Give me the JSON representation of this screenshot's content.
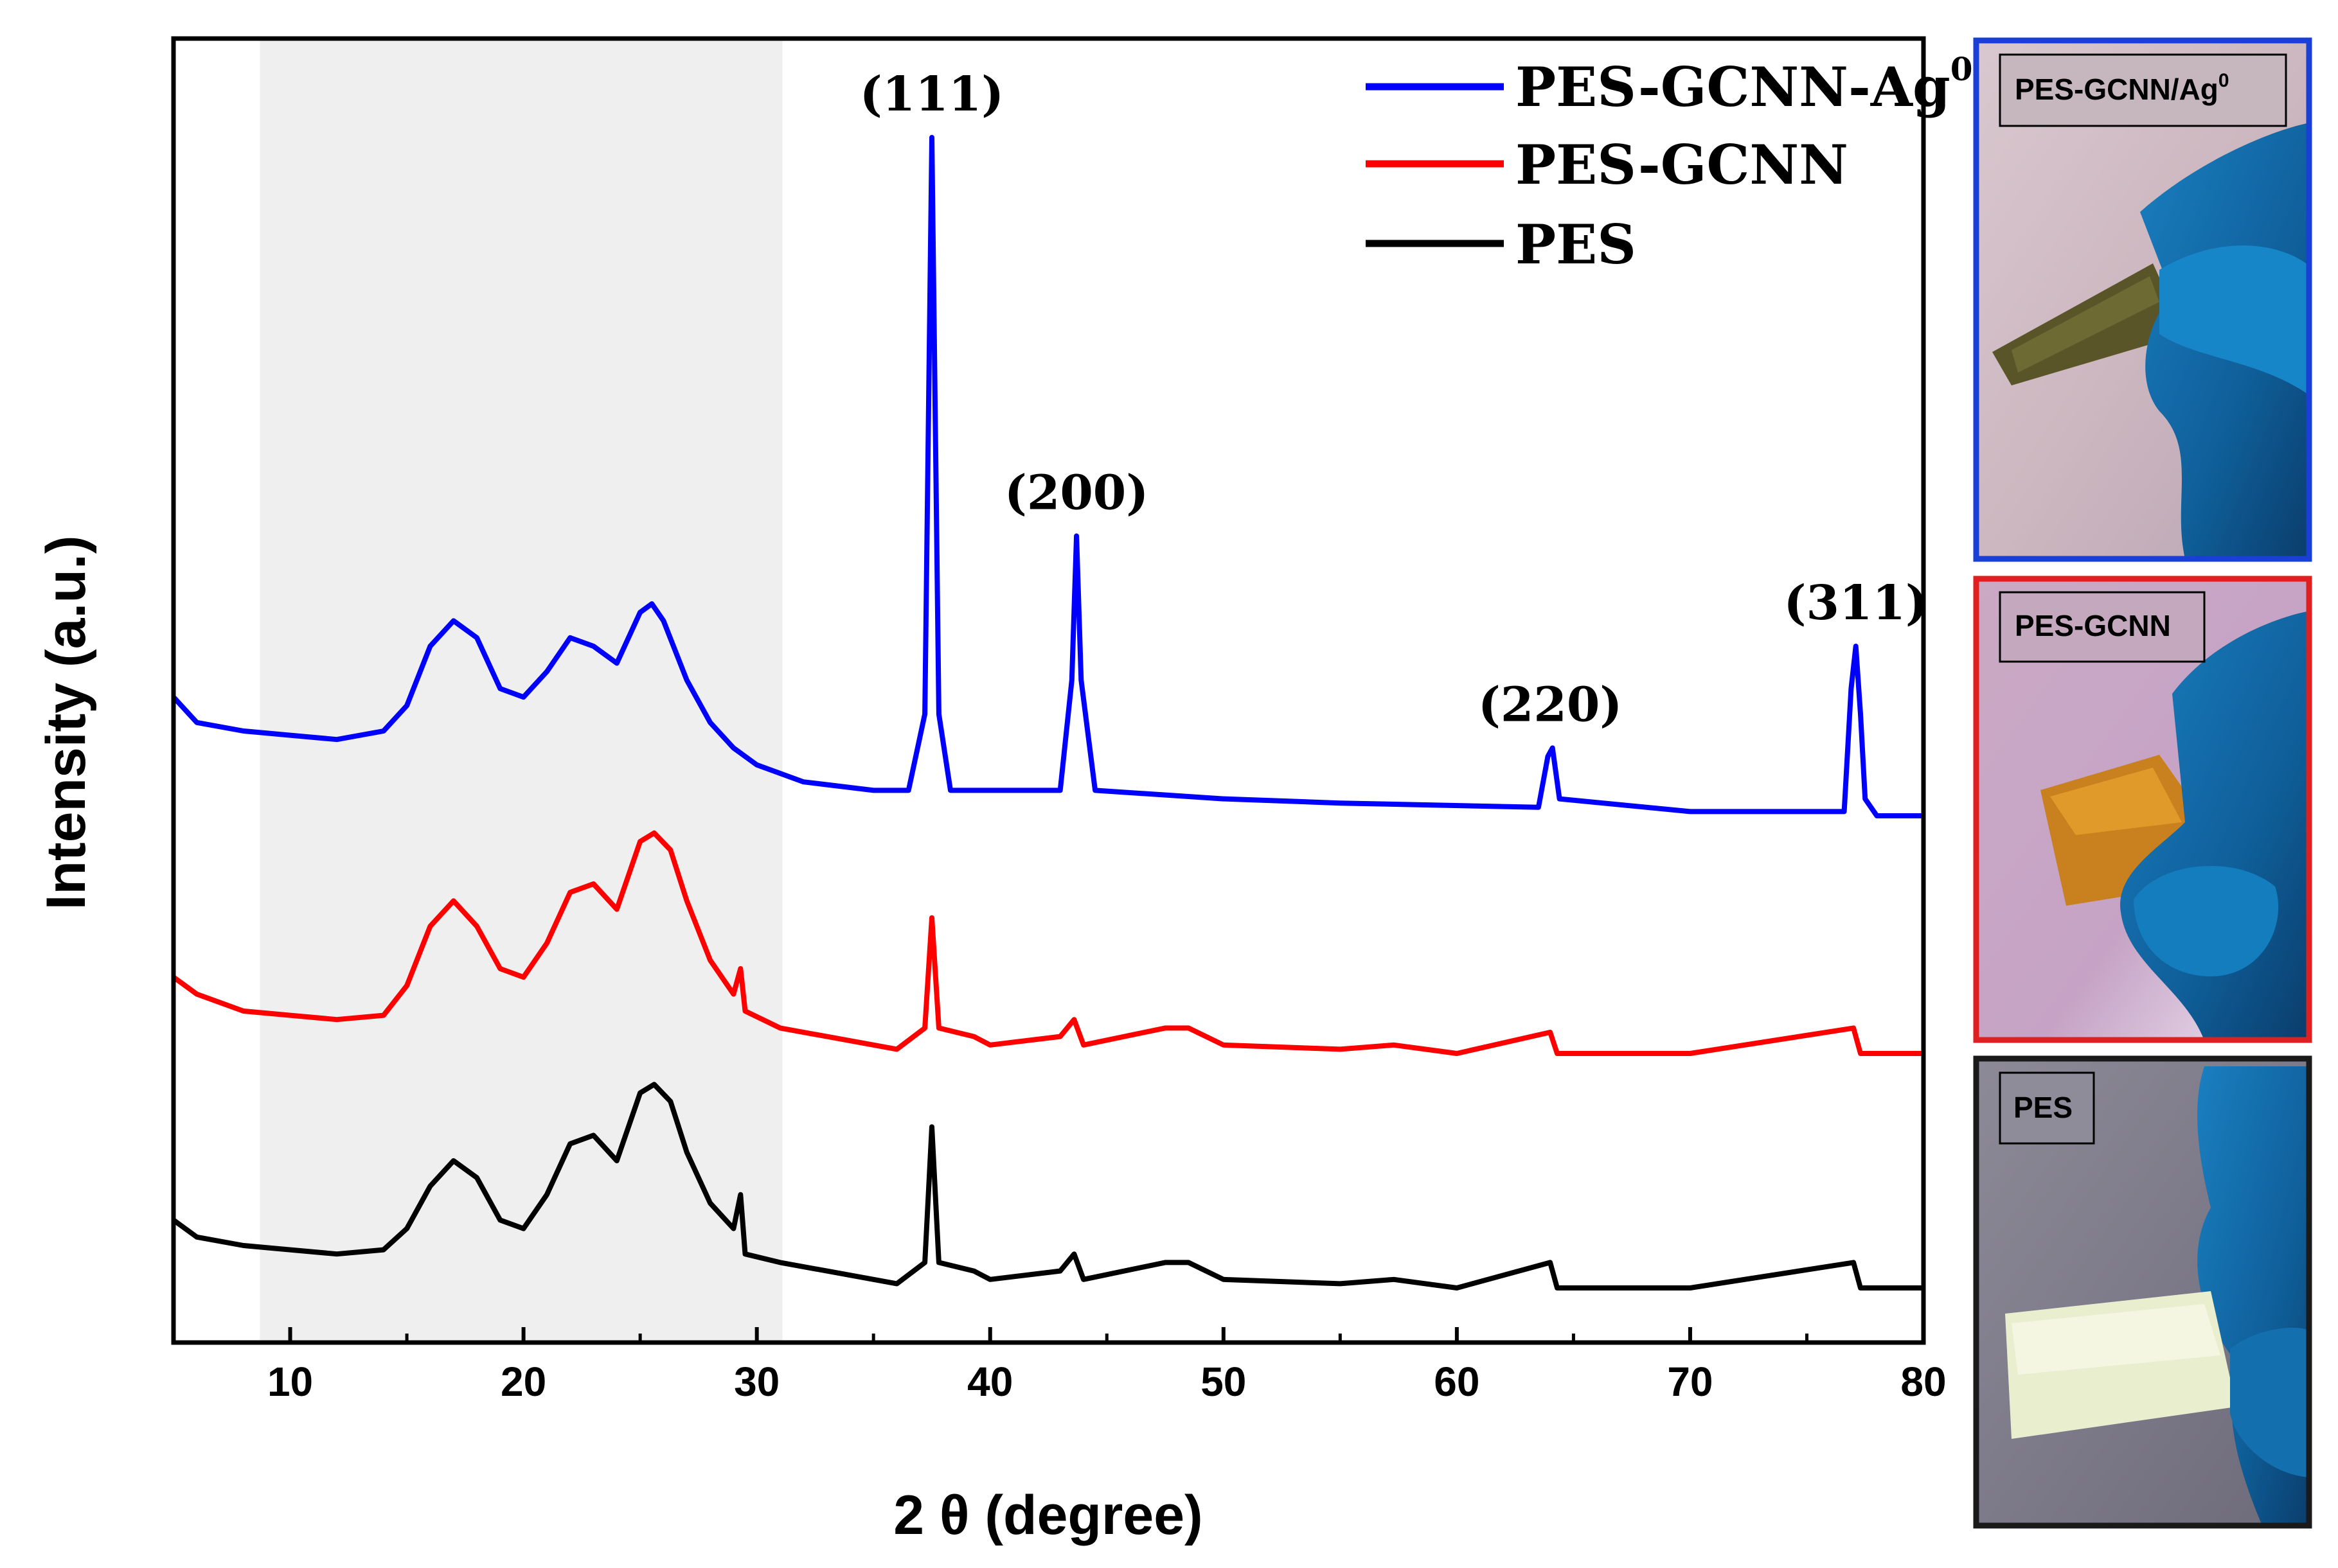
{
  "chart_data": {
    "type": "line",
    "title": "",
    "xlabel": "2 θ (degree)",
    "ylabel": "Intensity (a.u.)",
    "xlim": [
      5,
      80
    ],
    "xticks": [
      10,
      20,
      30,
      40,
      50,
      60,
      70,
      80
    ],
    "yticks": [],
    "grid": false,
    "legend_position": "top-right",
    "shaded_region": [
      8.7,
      31.1
    ],
    "series": [
      {
        "name": "PES-GCNN-Ag",
        "name_superscript": "0",
        "color": "#0000ff",
        "points": [
          [
            5,
            14
          ],
          [
            6,
            11
          ],
          [
            8,
            10
          ],
          [
            10,
            9.5
          ],
          [
            12,
            9
          ],
          [
            14,
            10
          ],
          [
            15,
            13
          ],
          [
            16,
            20
          ],
          [
            17,
            23
          ],
          [
            18,
            21
          ],
          [
            19,
            15
          ],
          [
            20,
            14
          ],
          [
            21,
            17
          ],
          [
            22,
            21
          ],
          [
            23,
            20
          ],
          [
            24,
            18
          ],
          [
            25,
            24
          ],
          [
            25.5,
            25
          ],
          [
            26,
            23
          ],
          [
            27,
            16
          ],
          [
            28,
            11
          ],
          [
            29,
            8
          ],
          [
            30,
            6
          ],
          [
            32,
            4
          ],
          [
            35,
            3
          ],
          [
            36.5,
            3
          ],
          [
            37.2,
            12
          ],
          [
            37.5,
            80
          ],
          [
            37.8,
            12
          ],
          [
            38.3,
            3
          ],
          [
            40,
            3
          ],
          [
            43,
            3
          ],
          [
            43.5,
            16
          ],
          [
            43.7,
            33
          ],
          [
            43.9,
            16
          ],
          [
            44.5,
            3
          ],
          [
            50,
            2
          ],
          [
            55,
            1.5
          ],
          [
            63.5,
            1
          ],
          [
            63.9,
            7
          ],
          [
            64.1,
            8
          ],
          [
            64.4,
            2
          ],
          [
            70,
            0.5
          ],
          [
            76.6,
            0.5
          ],
          [
            76.9,
            15
          ],
          [
            77.1,
            20
          ],
          [
            77.3,
            12
          ],
          [
            77.5,
            2
          ],
          [
            78,
            0
          ],
          [
            80,
            0
          ]
        ]
      },
      {
        "name": "PES-GCNN",
        "color": "#ff0000",
        "points": [
          [
            5,
            9
          ],
          [
            6,
            7
          ],
          [
            8,
            5
          ],
          [
            10,
            4.5
          ],
          [
            12,
            4
          ],
          [
            14,
            4.5
          ],
          [
            15,
            8
          ],
          [
            16,
            15
          ],
          [
            17,
            18
          ],
          [
            18,
            15
          ],
          [
            19,
            10
          ],
          [
            20,
            9
          ],
          [
            21,
            13
          ],
          [
            22,
            19
          ],
          [
            23,
            20
          ],
          [
            24,
            17
          ],
          [
            25,
            25
          ],
          [
            25.6,
            26
          ],
          [
            26.3,
            24
          ],
          [
            27,
            18
          ],
          [
            28,
            11
          ],
          [
            29,
            7
          ],
          [
            29.3,
            10
          ],
          [
            29.5,
            5
          ],
          [
            31,
            3
          ],
          [
            33,
            2
          ],
          [
            35,
            1
          ],
          [
            36,
            0.5
          ],
          [
            37.2,
            3
          ],
          [
            37.5,
            16
          ],
          [
            37.8,
            3
          ],
          [
            39.3,
            2
          ],
          [
            40,
            1
          ],
          [
            43,
            2
          ],
          [
            43.6,
            4
          ],
          [
            44,
            1
          ],
          [
            47.5,
            3
          ],
          [
            48.5,
            3
          ],
          [
            50,
            1
          ],
          [
            55,
            0.5
          ],
          [
            57.3,
            1
          ],
          [
            60,
            0
          ],
          [
            64,
            2.5
          ],
          [
            64.3,
            0
          ],
          [
            70,
            0
          ],
          [
            77,
            3
          ],
          [
            77.3,
            0
          ],
          [
            80,
            0
          ]
        ]
      },
      {
        "name": "PES",
        "color": "#000000",
        "points": [
          [
            5,
            8
          ],
          [
            6,
            6
          ],
          [
            8,
            5
          ],
          [
            10,
            4.5
          ],
          [
            12,
            4
          ],
          [
            14,
            4.5
          ],
          [
            15,
            7
          ],
          [
            16,
            12
          ],
          [
            17,
            15
          ],
          [
            18,
            13
          ],
          [
            19,
            8
          ],
          [
            20,
            7
          ],
          [
            21,
            11
          ],
          [
            22,
            17
          ],
          [
            23,
            18
          ],
          [
            24,
            15
          ],
          [
            25,
            23
          ],
          [
            25.6,
            24
          ],
          [
            26.3,
            22
          ],
          [
            27,
            16
          ],
          [
            28,
            10
          ],
          [
            29,
            7
          ],
          [
            29.3,
            11
          ],
          [
            29.5,
            4
          ],
          [
            31,
            3
          ],
          [
            33,
            2
          ],
          [
            35,
            1
          ],
          [
            36,
            0.5
          ],
          [
            37.2,
            3
          ],
          [
            37.5,
            19
          ],
          [
            37.8,
            3
          ],
          [
            39.3,
            2
          ],
          [
            40,
            1
          ],
          [
            43,
            2
          ],
          [
            43.6,
            4
          ],
          [
            44,
            1
          ],
          [
            47.5,
            3
          ],
          [
            48.5,
            3
          ],
          [
            50,
            1
          ],
          [
            55,
            0.5
          ],
          [
            57.3,
            1
          ],
          [
            60,
            0
          ],
          [
            64,
            3
          ],
          [
            64.3,
            0
          ],
          [
            70,
            0
          ],
          [
            77,
            3
          ],
          [
            77.3,
            0
          ],
          [
            80,
            0
          ]
        ]
      }
    ],
    "annotations": [
      {
        "text": "(111)",
        "x": 37.5
      },
      {
        "text": "(200)",
        "x": 43.7
      },
      {
        "text": "(220)",
        "x": 64.0
      },
      {
        "text": "(311)",
        "x": 77.1
      }
    ]
  },
  "photos": [
    {
      "label": "PES-GCNN/Ag",
      "label_superscript": "0",
      "frame_color": "#1a3fd6"
    },
    {
      "label": "PES-GCNN",
      "frame_color": "#e02020"
    },
    {
      "label": "PES",
      "frame_color": "#1a1a1a"
    }
  ]
}
